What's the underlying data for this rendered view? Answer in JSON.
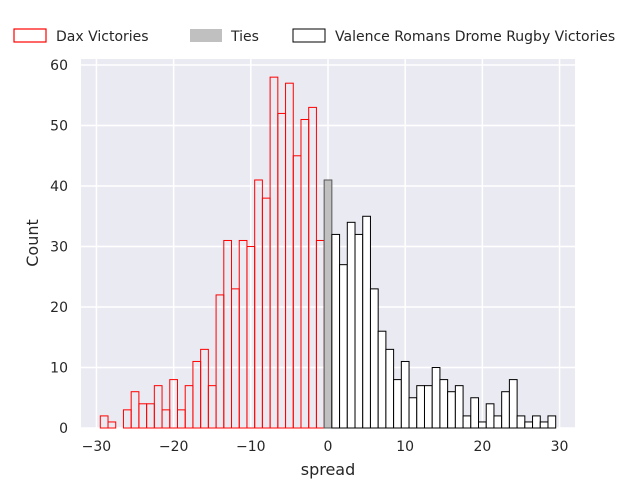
{
  "chart_data": {
    "type": "bar",
    "xlabel": "spread",
    "ylabel": "Count",
    "xlim": [
      -32,
      32
    ],
    "ylim": [
      0,
      61
    ],
    "xticks": [
      -30,
      -20,
      -10,
      0,
      10,
      20,
      30
    ],
    "yticks": [
      0,
      10,
      20,
      30,
      40,
      50,
      60
    ],
    "grid": true,
    "legend_position": "top, above plot",
    "background": "#eaeaf2",
    "series": [
      {
        "name": "Dax Victories",
        "style": "outline",
        "edge_color": "#ff0000",
        "fill_color": "none",
        "x": [
          -29,
          -28,
          -27,
          -26,
          -25,
          -24,
          -23,
          -22,
          -21,
          -20,
          -19,
          -18,
          -17,
          -16,
          -15,
          -14,
          -13,
          -12,
          -11,
          -10,
          -9,
          -8,
          -7,
          -6,
          -5,
          -4,
          -3,
          -2,
          -1
        ],
        "values": [
          2,
          1,
          0,
          3,
          6,
          4,
          4,
          7,
          3,
          8,
          3,
          7,
          11,
          13,
          7,
          22,
          31,
          23,
          31,
          30,
          41,
          38,
          58,
          52,
          57,
          45,
          51,
          53,
          31
        ]
      },
      {
        "name": "Ties",
        "style": "filled",
        "edge_color": "#555555",
        "fill_color": "#c0c0c0",
        "x": [
          0
        ],
        "values": [
          41
        ]
      },
      {
        "name": "Valence Romans Drome Rugby Victories",
        "style": "filled",
        "edge_color": "#000000",
        "fill_color": "#ffffff",
        "x": [
          1,
          2,
          3,
          4,
          5,
          6,
          7,
          8,
          9,
          10,
          11,
          12,
          13,
          14,
          15,
          16,
          17,
          18,
          19,
          20,
          21,
          22,
          23,
          24,
          25,
          26,
          27,
          28,
          29
        ],
        "values": [
          32,
          27,
          34,
          32,
          35,
          23,
          16,
          13,
          8,
          11,
          5,
          7,
          7,
          10,
          8,
          6,
          7,
          2,
          5,
          1,
          4,
          2,
          6,
          8,
          2,
          1,
          2,
          1,
          2
        ]
      }
    ]
  }
}
